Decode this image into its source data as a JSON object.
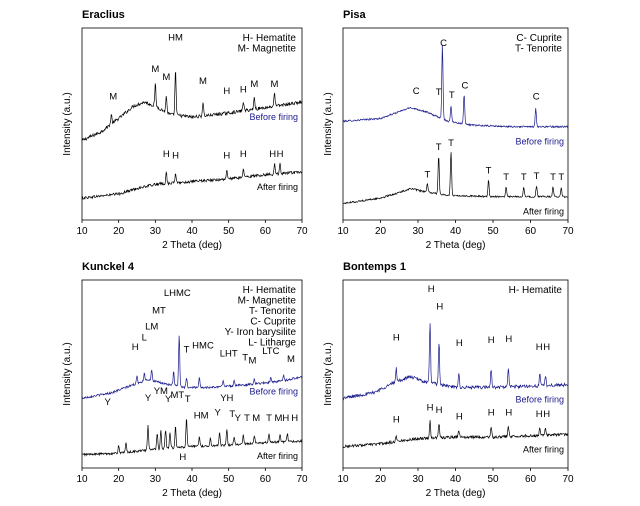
{
  "chart_data": [
    {
      "type": "line",
      "title": "Eraclius",
      "xlabel": "2 Theta (deg)",
      "ylabel": "Intensity (a.u.)",
      "xlim": [
        10,
        70
      ],
      "xticks": [
        10,
        20,
        30,
        40,
        50,
        60,
        70
      ],
      "legend": [
        "H- Hematite",
        "M- Magnetite"
      ],
      "legend_position": "top-right",
      "series": [
        {
          "name": "Before firing",
          "color": "#000000",
          "label_color": "#1a1a8c",
          "base": [
            [
              10,
              0.58
            ],
            [
              15,
              0.64
            ],
            [
              20,
              0.74
            ],
            [
              24,
              0.83
            ],
            [
              27,
              0.86
            ],
            [
              30,
              0.83
            ],
            [
              34,
              0.77
            ],
            [
              40,
              0.75
            ],
            [
              50,
              0.78
            ],
            [
              60,
              0.82
            ],
            [
              70,
              0.86
            ]
          ],
          "noise": 0.012,
          "peaks": [
            [
              18,
              0.07
            ],
            [
              30,
              0.16
            ],
            [
              33,
              0.12
            ],
            [
              35.5,
              0.34
            ],
            [
              43,
              0.1
            ],
            [
              54,
              0.07
            ],
            [
              57,
              0.09
            ],
            [
              62.5,
              0.1
            ]
          ]
        },
        {
          "name": "After firing",
          "color": "#000000",
          "label_color": "#000000",
          "base": [
            [
              10,
              0.16
            ],
            [
              20,
              0.19
            ],
            [
              25,
              0.23
            ],
            [
              30,
              0.26
            ],
            [
              40,
              0.28
            ],
            [
              50,
              0.3
            ],
            [
              60,
              0.33
            ],
            [
              70,
              0.35
            ]
          ],
          "noise": 0.01,
          "peaks": [
            [
              33,
              0.08
            ],
            [
              35.5,
              0.07
            ],
            [
              49.5,
              0.06
            ],
            [
              54,
              0.06
            ],
            [
              62.5,
              0.08
            ],
            [
              64,
              0.07
            ]
          ]
        }
      ],
      "annotations": [
        {
          "text": "M",
          "x": 18.5,
          "y": 0.88
        },
        {
          "text": "M",
          "x": 30,
          "y": 1.08
        },
        {
          "text": "M",
          "x": 33,
          "y": 1.02
        },
        {
          "text": "HM",
          "x": 35.5,
          "y": 1.31
        },
        {
          "text": "M",
          "x": 43,
          "y": 0.99
        },
        {
          "text": "H",
          "x": 49.5,
          "y": 0.92
        },
        {
          "text": "H",
          "x": 54,
          "y": 0.93
        },
        {
          "text": "M",
          "x": 57,
          "y": 0.97
        },
        {
          "text": "M",
          "x": 62.5,
          "y": 0.97
        },
        {
          "text": "H",
          "x": 33,
          "y": 0.46
        },
        {
          "text": "H",
          "x": 35.5,
          "y": 0.45
        },
        {
          "text": "H",
          "x": 49.5,
          "y": 0.45
        },
        {
          "text": "H",
          "x": 54,
          "y": 0.46
        },
        {
          "text": "H",
          "x": 62,
          "y": 0.46
        },
        {
          "text": "H",
          "x": 64,
          "y": 0.46
        }
      ]
    },
    {
      "type": "line",
      "title": "Pisa",
      "xlabel": "2 Theta (deg)",
      "ylabel": "Intensity (a.u.)",
      "xlim": [
        10,
        70
      ],
      "xticks": [
        10,
        20,
        30,
        40,
        50,
        60,
        70
      ],
      "legend": [
        "C- Cuprite",
        "T- Tenorite"
      ],
      "legend_position": "top-right",
      "series": [
        {
          "name": "Before firing",
          "color": "#1a1a8c",
          "label_color": "#1a1a8c",
          "base": [
            [
              10,
              0.72
            ],
            [
              20,
              0.74
            ],
            [
              24,
              0.78
            ],
            [
              28,
              0.82
            ],
            [
              32,
              0.79
            ],
            [
              38,
              0.72
            ],
            [
              45,
              0.69
            ],
            [
              55,
              0.68
            ],
            [
              65,
              0.68
            ],
            [
              70,
              0.68
            ]
          ],
          "noise": 0.006,
          "peaks": [
            [
              36.5,
              0.55
            ],
            [
              38.8,
              0.12
            ],
            [
              42.3,
              0.22
            ],
            [
              61.4,
              0.14
            ]
          ]
        },
        {
          "name": "After firing",
          "color": "#000000",
          "label_color": "#000000",
          "base": [
            [
              10,
              0.12
            ],
            [
              20,
              0.16
            ],
            [
              25,
              0.2
            ],
            [
              28,
              0.23
            ],
            [
              31,
              0.21
            ],
            [
              38,
              0.18
            ],
            [
              50,
              0.17
            ],
            [
              60,
              0.17
            ],
            [
              70,
              0.17
            ]
          ],
          "noise": 0.006,
          "peaks": [
            [
              32.5,
              0.06
            ],
            [
              35.5,
              0.28
            ],
            [
              38.8,
              0.32
            ],
            [
              48.8,
              0.12
            ],
            [
              53.5,
              0.07
            ],
            [
              58.2,
              0.07
            ],
            [
              61.6,
              0.08
            ],
            [
              66,
              0.07
            ],
            [
              68.2,
              0.07
            ]
          ]
        }
      ],
      "annotations": [
        {
          "text": "C",
          "x": 36.8,
          "y": 1.27
        },
        {
          "text": "C",
          "x": 29.5,
          "y": 0.92
        },
        {
          "text": "T",
          "x": 35.5,
          "y": 0.91
        },
        {
          "text": "T",
          "x": 39,
          "y": 0.89
        },
        {
          "text": "C",
          "x": 42.5,
          "y": 0.96
        },
        {
          "text": "C",
          "x": 61.5,
          "y": 0.88
        },
        {
          "text": "T",
          "x": 32.5,
          "y": 0.31
        },
        {
          "text": "T",
          "x": 35.5,
          "y": 0.51
        },
        {
          "text": "T",
          "x": 38.8,
          "y": 0.54
        },
        {
          "text": "T",
          "x": 48.8,
          "y": 0.34
        },
        {
          "text": "T",
          "x": 53.5,
          "y": 0.29
        },
        {
          "text": "T",
          "x": 58.2,
          "y": 0.29
        },
        {
          "text": "T",
          "x": 61.6,
          "y": 0.3
        },
        {
          "text": "T",
          "x": 66,
          "y": 0.29
        },
        {
          "text": "T",
          "x": 68.2,
          "y": 0.29
        }
      ]
    },
    {
      "type": "line",
      "title": "Kunckel 4",
      "xlabel": "2 Theta (deg)",
      "ylabel": "Intensity (a.u.)",
      "xlim": [
        10,
        70
      ],
      "xticks": [
        10,
        20,
        30,
        40,
        50,
        60,
        70
      ],
      "legend": [
        "H- Hematite",
        "M- Magnetite",
        "T- Tenorite",
        "C- Cuprite",
        "Y- Iron barysilite",
        "L- Litharge"
      ],
      "legend_position": "top-right",
      "series": [
        {
          "name": "Before firing",
          "color": "#1a1a8c",
          "label_color": "#1a1a8c",
          "base": [
            [
              10,
              0.52
            ],
            [
              18,
              0.56
            ],
            [
              24,
              0.62
            ],
            [
              28,
              0.66
            ],
            [
              32,
              0.63
            ],
            [
              38,
              0.6
            ],
            [
              45,
              0.6
            ],
            [
              55,
              0.62
            ],
            [
              65,
              0.65
            ],
            [
              70,
              0.68
            ]
          ],
          "noise": 0.008,
          "peaks": [
            [
              25,
              0.05
            ],
            [
              27,
              0.06
            ],
            [
              29,
              0.08
            ],
            [
              35,
              0.1
            ],
            [
              36.5,
              0.38
            ],
            [
              38.5,
              0.08
            ],
            [
              42,
              0.08
            ],
            [
              48.5,
              0.05
            ],
            [
              51.5,
              0.04
            ],
            [
              57,
              0.04
            ],
            [
              61.5,
              0.04
            ],
            [
              65,
              0.04
            ]
          ]
        },
        {
          "name": "After firing",
          "color": "#000000",
          "label_color": "#000000",
          "base": [
            [
              10,
              0.1
            ],
            [
              20,
              0.11
            ],
            [
              30,
              0.14
            ],
            [
              40,
              0.16
            ],
            [
              50,
              0.17
            ],
            [
              60,
              0.19
            ],
            [
              70,
              0.2
            ]
          ],
          "noise": 0.008,
          "peaks": [
            [
              20,
              0.06
            ],
            [
              22,
              0.07
            ],
            [
              28,
              0.18
            ],
            [
              30.5,
              0.12
            ],
            [
              31.5,
              0.14
            ],
            [
              32.8,
              0.14
            ],
            [
              34,
              0.12
            ],
            [
              35.5,
              0.16
            ],
            [
              38.5,
              0.22
            ],
            [
              42,
              0.07
            ],
            [
              45,
              0.06
            ],
            [
              47.5,
              0.1
            ],
            [
              49.5,
              0.12
            ],
            [
              51.5,
              0.06
            ],
            [
              54,
              0.07
            ],
            [
              57,
              0.06
            ],
            [
              61,
              0.06
            ],
            [
              64,
              0.06
            ],
            [
              66,
              0.06
            ]
          ]
        }
      ],
      "annotations": [
        {
          "text": "LHMC",
          "x": 36,
          "y": 1.28
        },
        {
          "text": "MT",
          "x": 31,
          "y": 1.15
        },
        {
          "text": "LM",
          "x": 29,
          "y": 1.03
        },
        {
          "text": "L",
          "x": 27,
          "y": 0.95
        },
        {
          "text": "H",
          "x": 24.5,
          "y": 0.88
        },
        {
          "text": "T",
          "x": 38.5,
          "y": 0.86
        },
        {
          "text": "HMC",
          "x": 43,
          "y": 0.89
        },
        {
          "text": "LHT",
          "x": 50,
          "y": 0.83
        },
        {
          "text": "T",
          "x": 54.5,
          "y": 0.8
        },
        {
          "text": "M",
          "x": 56.5,
          "y": 0.78
        },
        {
          "text": "LTC",
          "x": 61.5,
          "y": 0.85
        },
        {
          "text": "M",
          "x": 67,
          "y": 0.79
        },
        {
          "text": "Y",
          "x": 17,
          "y": 0.47
        },
        {
          "text": "YM",
          "x": 31.5,
          "y": 0.55
        },
        {
          "text": "Y",
          "x": 28,
          "y": 0.5
        },
        {
          "text": "Y",
          "x": 33.5,
          "y": 0.49
        },
        {
          "text": "MT",
          "x": 36,
          "y": 0.52
        },
        {
          "text": "T",
          "x": 38.8,
          "y": 0.49
        },
        {
          "text": "YH",
          "x": 49.5,
          "y": 0.5
        },
        {
          "text": "HM",
          "x": 42.5,
          "y": 0.37
        },
        {
          "text": "Y",
          "x": 47,
          "y": 0.39
        },
        {
          "text": "T",
          "x": 51,
          "y": 0.38
        },
        {
          "text": "Y",
          "x": 52.5,
          "y": 0.35
        },
        {
          "text": "T",
          "x": 55,
          "y": 0.35
        },
        {
          "text": "M",
          "x": 57.5,
          "y": 0.35
        },
        {
          "text": "T",
          "x": 61,
          "y": 0.35
        },
        {
          "text": "MH",
          "x": 64.5,
          "y": 0.35
        },
        {
          "text": "H",
          "x": 68,
          "y": 0.35
        },
        {
          "text": "H",
          "x": 37.5,
          "y": 0.06
        }
      ]
    },
    {
      "type": "line",
      "title": "Bontemps 1",
      "xlabel": "2 Theta (deg)",
      "ylabel": "Intensity (a.u.)",
      "xlim": [
        10,
        70
      ],
      "xticks": [
        10,
        20,
        30,
        40,
        50,
        60,
        70
      ],
      "legend": [
        "H- Hematite"
      ],
      "legend_position": "top-right",
      "series": [
        {
          "name": "Before firing",
          "color": "#1a1a8c",
          "label_color": "#1a1a8c",
          "base": [
            [
              10,
              0.52
            ],
            [
              18,
              0.56
            ],
            [
              24,
              0.64
            ],
            [
              28,
              0.68
            ],
            [
              32,
              0.64
            ],
            [
              40,
              0.6
            ],
            [
              50,
              0.6
            ],
            [
              60,
              0.61
            ],
            [
              70,
              0.62
            ]
          ],
          "noise": 0.012,
          "peaks": [
            [
              24.2,
              0.1
            ],
            [
              33.2,
              0.45
            ],
            [
              35.6,
              0.32
            ],
            [
              40.9,
              0.1
            ],
            [
              49.5,
              0.14
            ],
            [
              54.1,
              0.14
            ],
            [
              62.5,
              0.08
            ],
            [
              64,
              0.07
            ]
          ]
        },
        {
          "name": "After firing",
          "color": "#000000",
          "label_color": "#000000",
          "base": [
            [
              10,
              0.16
            ],
            [
              20,
              0.18
            ],
            [
              25,
              0.2
            ],
            [
              30,
              0.22
            ],
            [
              40,
              0.23
            ],
            [
              50,
              0.23
            ],
            [
              60,
              0.24
            ],
            [
              70,
              0.25
            ]
          ],
          "noise": 0.01,
          "peaks": [
            [
              24.2,
              0.04
            ],
            [
              33.2,
              0.13
            ],
            [
              35.6,
              0.11
            ],
            [
              40.9,
              0.05
            ],
            [
              49.5,
              0.07
            ],
            [
              54.1,
              0.07
            ],
            [
              62.5,
              0.06
            ],
            [
              64,
              0.05
            ]
          ]
        }
      ],
      "annotations": [
        {
          "text": "H",
          "x": 33.5,
          "y": 1.31
        },
        {
          "text": "H",
          "x": 35.8,
          "y": 1.18
        },
        {
          "text": "H",
          "x": 24.2,
          "y": 0.95
        },
        {
          "text": "H",
          "x": 41,
          "y": 0.91
        },
        {
          "text": "H",
          "x": 49.5,
          "y": 0.93
        },
        {
          "text": "H",
          "x": 54.2,
          "y": 0.94
        },
        {
          "text": "H",
          "x": 62.3,
          "y": 0.88
        },
        {
          "text": "H",
          "x": 64.3,
          "y": 0.88
        },
        {
          "text": "H",
          "x": 24.2,
          "y": 0.34
        },
        {
          "text": "H",
          "x": 33.2,
          "y": 0.43
        },
        {
          "text": "H",
          "x": 35.6,
          "y": 0.41
        },
        {
          "text": "H",
          "x": 41,
          "y": 0.36
        },
        {
          "text": "H",
          "x": 49.5,
          "y": 0.39
        },
        {
          "text": "H",
          "x": 54.2,
          "y": 0.39
        },
        {
          "text": "H",
          "x": 62.3,
          "y": 0.38
        },
        {
          "text": "H",
          "x": 64.3,
          "y": 0.38
        }
      ]
    }
  ]
}
